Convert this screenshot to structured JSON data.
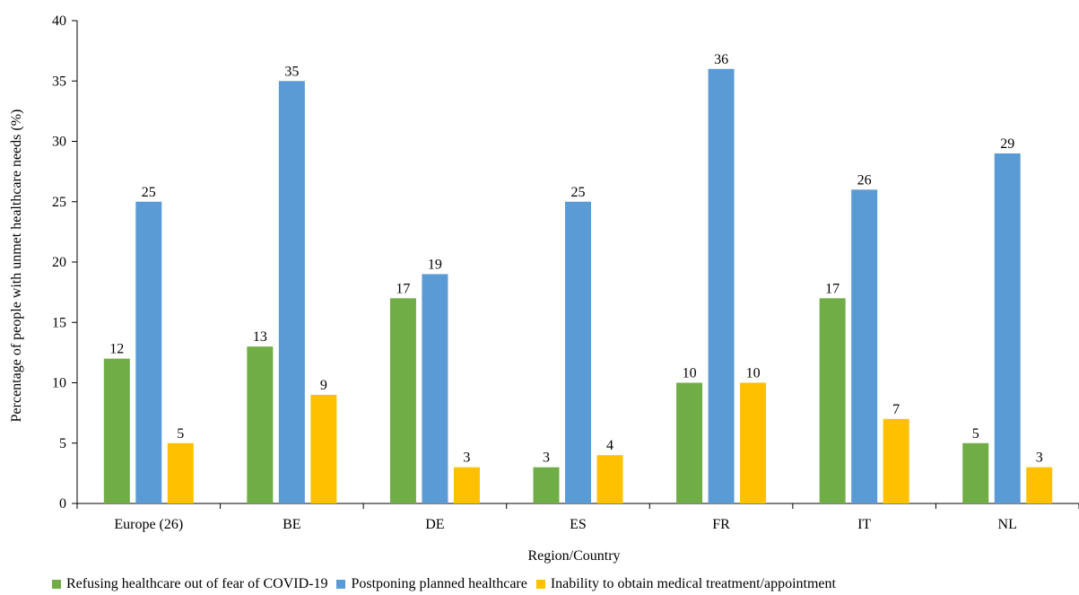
{
  "chart_data": {
    "type": "bar",
    "categories": [
      "Europe (26)",
      "BE",
      "DE",
      "ES",
      "FR",
      "IT",
      "NL"
    ],
    "series": [
      {
        "name": "Refusing healthcare out of fear of COVID-19",
        "color": "#70AD47",
        "values": [
          12,
          13,
          17,
          3,
          10,
          17,
          5
        ]
      },
      {
        "name": "Postponing planned healthcare",
        "color": "#5B9BD5",
        "values": [
          25,
          35,
          19,
          25,
          36,
          26,
          29
        ]
      },
      {
        "name": "Inability to obtain medical treatment/appointment",
        "color": "#FFC000",
        "values": [
          5,
          9,
          3,
          4,
          10,
          7,
          3
        ]
      }
    ],
    "title": "",
    "xlabel": "Region/Country",
    "ylabel": "Percentage of people with unmet healthcare needs (%)",
    "ylim": [
      0,
      40
    ],
    "yticks": [
      0,
      5,
      10,
      15,
      20,
      25,
      30,
      35,
      40
    ],
    "grid": false,
    "legend_position": "bottom",
    "data_labels": true
  }
}
